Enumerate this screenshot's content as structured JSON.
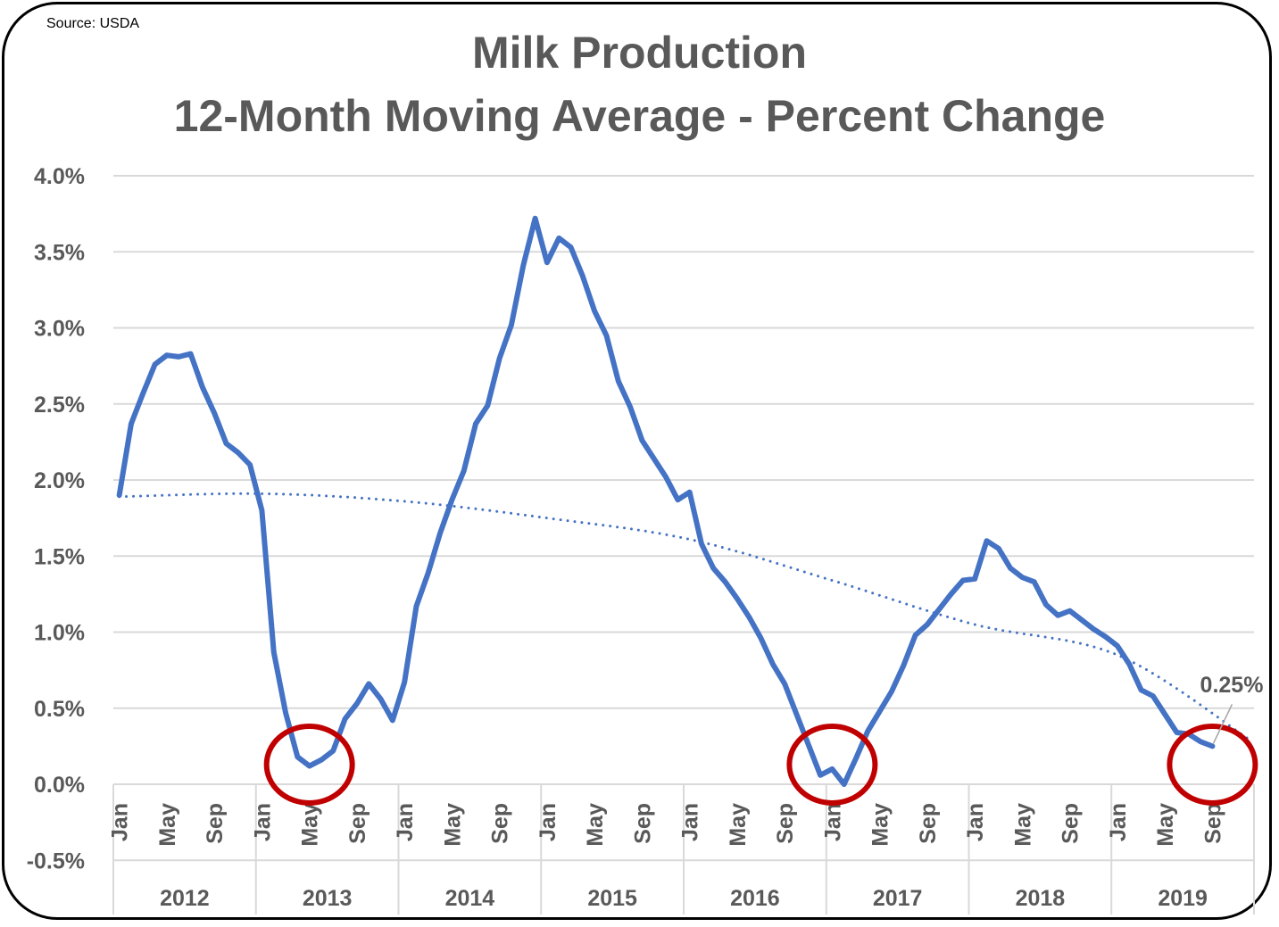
{
  "source": "Source: USDA",
  "chart_data": {
    "type": "line",
    "title": [
      "Milk Production",
      "12-Month Moving Average - Percent Change"
    ],
    "xlabel": "",
    "ylabel": "",
    "ylim": [
      -0.5,
      4.0
    ],
    "ytick_step": 0.5,
    "ytick_labels": [
      "-0.5%",
      "0.0%",
      "0.5%",
      "1.0%",
      "1.5%",
      "2.0%",
      "2.5%",
      "3.0%",
      "3.5%",
      "4.0%"
    ],
    "grid": true,
    "years": [
      "2012",
      "2013",
      "2014",
      "2015",
      "2016",
      "2017",
      "2018",
      "2019"
    ],
    "month_tick_labels": [
      "Jan",
      "May",
      "Sep"
    ],
    "series": [
      {
        "color": "#4472C4",
        "start": "Jan 2012",
        "values": [
          1.9,
          2.37,
          2.57,
          2.76,
          2.82,
          2.81,
          2.83,
          2.61,
          2.44,
          2.24,
          2.18,
          2.1,
          1.8,
          0.87,
          0.47,
          0.18,
          0.12,
          0.16,
          0.22,
          0.43,
          0.53,
          0.66,
          0.56,
          0.42,
          0.67,
          1.17,
          1.39,
          1.65,
          1.87,
          2.06,
          2.37,
          2.49,
          2.8,
          3.02,
          3.41,
          3.72,
          3.43,
          3.59,
          3.53,
          3.34,
          3.11,
          2.95,
          2.65,
          2.48,
          2.26,
          2.14,
          2.02,
          1.87,
          1.92,
          1.58,
          1.42,
          1.33,
          1.22,
          1.1,
          0.96,
          0.79,
          0.66,
          0.46,
          0.26,
          0.06,
          0.1,
          0.0,
          0.17,
          0.35,
          0.48,
          0.61,
          0.78,
          0.98,
          1.05,
          1.15,
          1.25,
          1.34,
          1.35,
          1.6,
          1.55,
          1.42,
          1.36,
          1.33,
          1.18,
          1.11,
          1.14,
          1.08,
          1.02,
          0.97,
          0.91,
          0.79,
          0.62,
          0.58,
          0.46,
          0.34,
          0.33,
          0.28,
          0.25
        ]
      },
      {
        "type": "trendline",
        "style": "dotted",
        "color": "#4472C4",
        "points": [
          [
            "Jan 2012",
            1.89
          ],
          [
            "Jan 2013",
            1.91
          ],
          [
            "Jan 2014",
            1.86
          ],
          [
            "Jan 2015",
            1.75
          ],
          [
            "Jan 2016",
            1.61
          ],
          [
            "Jan 2017",
            1.34
          ],
          [
            "Jan 2018",
            1.05
          ],
          [
            "Jan 2019",
            0.85
          ],
          [
            "Dec 2019",
            0.3
          ]
        ]
      }
    ],
    "annotations": {
      "last_value_label": "0.25%",
      "highlight_circles": [
        "May 2013",
        "Jan 2017",
        "Sep 2019"
      ],
      "circle_color": "#C00000"
    }
  }
}
